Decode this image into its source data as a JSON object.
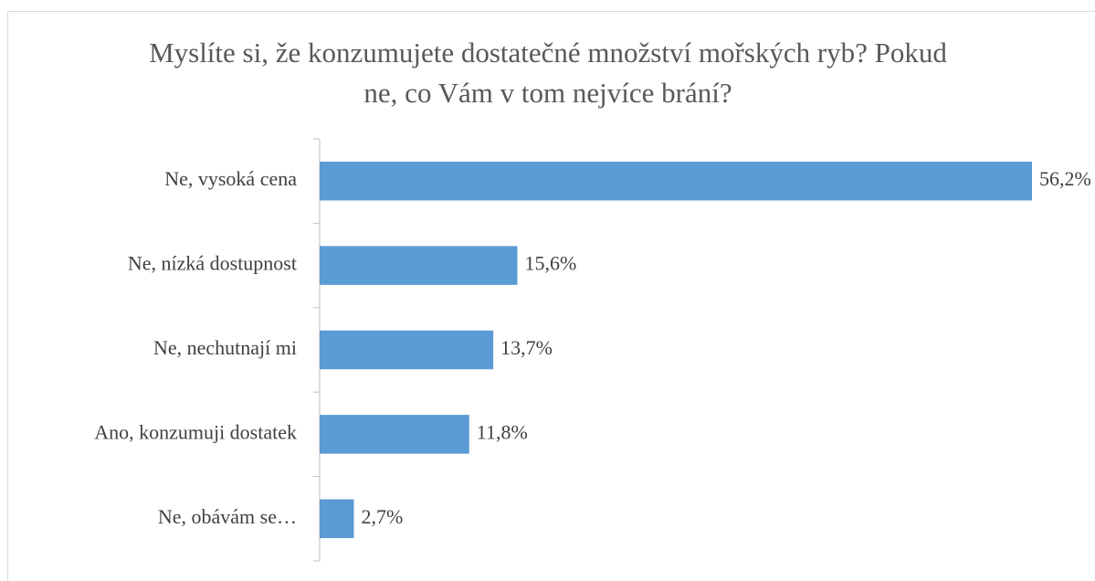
{
  "chart_data": {
    "type": "bar",
    "orientation": "horizontal",
    "title": "Myslíte si, že konzumujete dostatečné množství mořských ryb? Pokud ne, co Vám v tom nejvíce brání?",
    "categories": [
      "Ne, vysoká cena",
      "Ne, nízká dostupnost",
      "Ne, nechutnají mi",
      "Ano, konzumuji dostatek",
      "Ne, obávám se…"
    ],
    "values": [
      56.2,
      15.6,
      13.7,
      11.8,
      2.7
    ],
    "value_labels": [
      "56,2%",
      "15,6%",
      "13,7%",
      "11,8%",
      "2,7%"
    ],
    "color": "#5b9bd5"
  }
}
